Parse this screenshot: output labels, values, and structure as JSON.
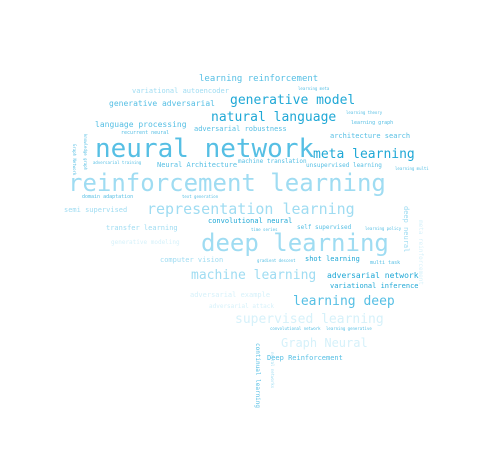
{
  "colors": {
    "background": "#ffffff",
    "strong": "#1fa8d6",
    "medium": "#56bfe4",
    "light": "#9fdcf2",
    "faint": "#d6f1fa"
  },
  "words": [
    {
      "id": "neural-network",
      "text": "neural network",
      "color": "medium"
    },
    {
      "id": "reinforcement-learning",
      "text": "reinforcement learning",
      "color": "light"
    },
    {
      "id": "deep-learning",
      "text": "deep learning",
      "color": "light"
    },
    {
      "id": "representation-learning",
      "text": "representation learning",
      "color": "light"
    },
    {
      "id": "generative-model",
      "text": "generative model",
      "color": "strong"
    },
    {
      "id": "natural-language",
      "text": "natural language",
      "color": "strong"
    },
    {
      "id": "meta-learning",
      "text": "meta learning",
      "color": "strong"
    },
    {
      "id": "machine-learning",
      "text": "machine learning",
      "color": "light"
    },
    {
      "id": "learning-deep",
      "text": "learning deep",
      "color": "medium"
    },
    {
      "id": "supervised-learning",
      "text": "supervised learning",
      "color": "faint"
    },
    {
      "id": "graph-neural",
      "text": "Graph Neural",
      "color": "faint"
    },
    {
      "id": "learning-reinforcement",
      "text": "learning reinforcement",
      "color": "medium"
    },
    {
      "id": "generative-adversarial",
      "text": "generative adversarial",
      "color": "medium"
    },
    {
      "id": "language-processing",
      "text": "language processing",
      "color": "medium"
    },
    {
      "id": "variational-autoencoder",
      "text": "variational autoencoder",
      "color": "light"
    },
    {
      "id": "adversarial-robustness",
      "text": "adversarial robustness",
      "color": "medium"
    },
    {
      "id": "architecture-search",
      "text": "architecture search",
      "color": "medium"
    },
    {
      "id": "neural-architecture",
      "text": "Neural Architecture",
      "color": "medium"
    },
    {
      "id": "machine-translation",
      "text": "machine translation",
      "color": "medium"
    },
    {
      "id": "unsupervised-learning",
      "text": "unsupervised learning",
      "color": "medium"
    },
    {
      "id": "convolutional-neural",
      "text": "convolutional neural",
      "color": "strong"
    },
    {
      "id": "self-supervised",
      "text": "self supervised",
      "color": "medium"
    },
    {
      "id": "shot-learning",
      "text": "shot learning",
      "color": "strong"
    },
    {
      "id": "adversarial-network",
      "text": "adversarial network",
      "color": "strong"
    },
    {
      "id": "variational-inference",
      "text": "variational inference",
      "color": "strong"
    },
    {
      "id": "computer-vision",
      "text": "computer vision",
      "color": "light"
    },
    {
      "id": "transfer-learning",
      "text": "transfer learning",
      "color": "light"
    },
    {
      "id": "semi-supervised",
      "text": "semi supervised",
      "color": "light"
    },
    {
      "id": "domain-adaptation",
      "text": "domain adaptation",
      "color": "medium"
    },
    {
      "id": "deep-reinforcement",
      "text": "Deep Reinforcement",
      "color": "medium"
    },
    {
      "id": "recurrent-neural",
      "text": "recurrent neural",
      "color": "medium"
    },
    {
      "id": "adversarial-example",
      "text": "adversarial example",
      "color": "faint"
    },
    {
      "id": "adversarial-attack",
      "text": "adversarial attack",
      "color": "faint"
    },
    {
      "id": "knowledge-graph",
      "text": "knowledge graph",
      "color": "medium"
    },
    {
      "id": "learning-graph",
      "text": "learning graph",
      "color": "medium"
    },
    {
      "id": "learning-theory",
      "text": "learning theory",
      "color": "medium"
    },
    {
      "id": "learning-meta",
      "text": "learning meta",
      "color": "medium"
    },
    {
      "id": "multi-task",
      "text": "multi task",
      "color": "medium"
    },
    {
      "id": "learning-policy",
      "text": "learning policy",
      "color": "medium"
    },
    {
      "id": "learning-multi",
      "text": "learning multi",
      "color": "medium"
    },
    {
      "id": "gradient-descent",
      "text": "gradient descent",
      "color": "medium"
    },
    {
      "id": "adversarial-training",
      "text": "adversarial training",
      "color": "medium"
    },
    {
      "id": "text-generation",
      "text": "text generation",
      "color": "medium"
    },
    {
      "id": "time-series",
      "text": "time series",
      "color": "medium"
    },
    {
      "id": "convolutional-network",
      "text": "convolutional network",
      "color": "medium"
    },
    {
      "id": "learning-generative",
      "text": "learning generative",
      "color": "medium"
    },
    {
      "id": "generative-modeling",
      "text": "generative modeling",
      "color": "faint"
    },
    {
      "id": "deep-neural",
      "text": "deep neural",
      "color": "light"
    },
    {
      "id": "graph-network",
      "text": "Graph Network",
      "color": "medium"
    },
    {
      "id": "continual-learning",
      "text": "continual learning",
      "color": "medium"
    },
    {
      "id": "neural-networks",
      "text": "neural networks",
      "color": "light"
    },
    {
      "id": "meta-reinforcement",
      "text": "meta reinforcement",
      "color": "faint"
    }
  ]
}
